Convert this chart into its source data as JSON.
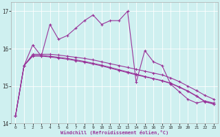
{
  "xlabel": "Windchill (Refroidissement éolien,°C)",
  "background_color": "#cff0f0",
  "line_color": "#993399",
  "grid_color": "#ffffff",
  "xlim": [
    -0.5,
    23.5
  ],
  "ylim": [
    14.0,
    17.25
  ],
  "yticks": [
    14,
    15,
    16,
    17
  ],
  "xticks": [
    0,
    1,
    2,
    3,
    4,
    5,
    6,
    7,
    8,
    9,
    10,
    11,
    12,
    13,
    14,
    15,
    16,
    17,
    18,
    19,
    20,
    21,
    22,
    23
  ],
  "series": [
    [
      14.2,
      15.55,
      16.1,
      15.8,
      16.65,
      16.25,
      16.35,
      16.55,
      16.75,
      16.9,
      16.65,
      16.75,
      16.75,
      17.0,
      15.1,
      15.95,
      15.65,
      15.55,
      15.05,
      14.85,
      14.65,
      14.55,
      14.6,
      14.55
    ],
    [
      14.2,
      15.55,
      15.85,
      15.85,
      15.85,
      15.83,
      15.8,
      15.77,
      15.74,
      15.7,
      15.65,
      15.6,
      15.55,
      15.5,
      15.45,
      15.4,
      15.35,
      15.3,
      15.22,
      15.12,
      15.0,
      14.88,
      14.75,
      14.65
    ],
    [
      14.2,
      15.55,
      15.82,
      15.82,
      15.8,
      15.77,
      15.74,
      15.7,
      15.66,
      15.61,
      15.56,
      15.5,
      15.44,
      15.38,
      15.32,
      15.26,
      15.2,
      15.14,
      15.07,
      14.97,
      14.86,
      14.73,
      14.58,
      14.52
    ],
    [
      14.2,
      15.55,
      15.8,
      15.8,
      15.78,
      15.75,
      15.72,
      15.68,
      15.64,
      15.59,
      15.54,
      15.48,
      15.42,
      15.36,
      15.3,
      15.25,
      15.2,
      15.15,
      15.08,
      14.98,
      14.87,
      14.74,
      14.59,
      14.52
    ]
  ]
}
